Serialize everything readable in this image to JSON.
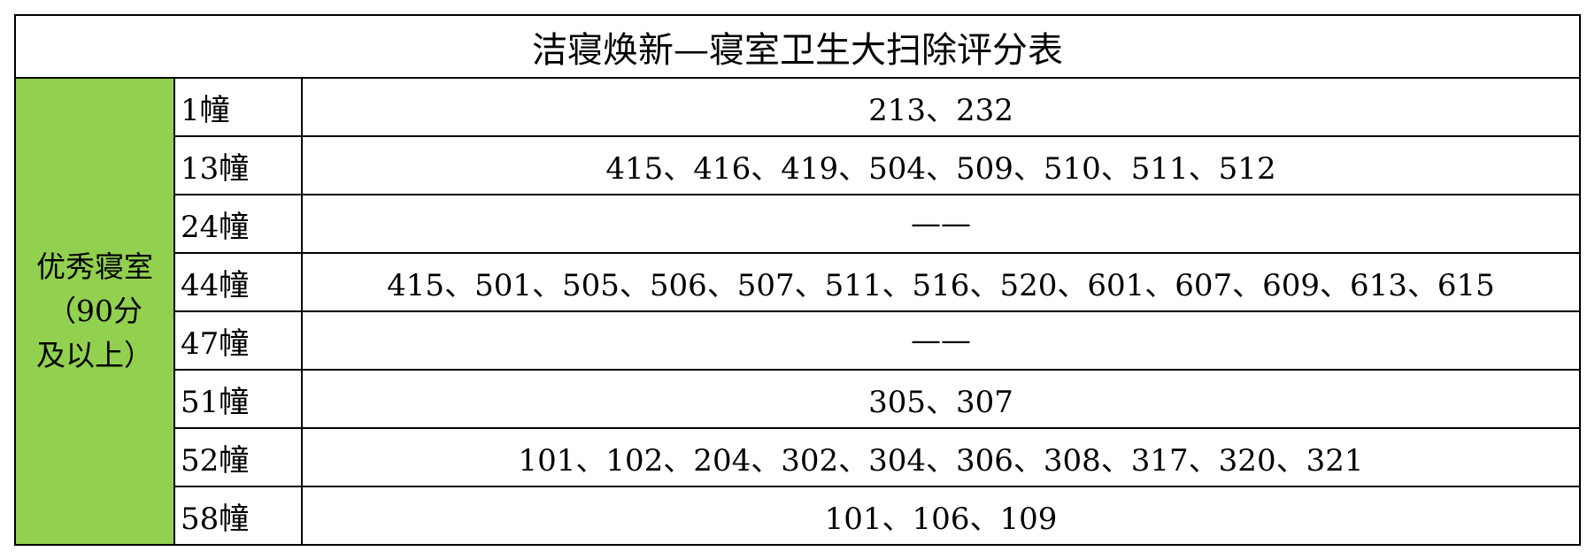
{
  "title": "洁寝焕新—寝室卫生大扫除评分表",
  "category": {
    "line1": "优秀寝室",
    "line2": "（90分",
    "line3": "及以上）",
    "color": "#92D050"
  },
  "rows": [
    {
      "building": "1幢",
      "rooms": "213、232"
    },
    {
      "building": "13幢",
      "rooms": "415、416、419、504、509、510、511、512"
    },
    {
      "building": "24幢",
      "rooms": "——"
    },
    {
      "building": "44幢",
      "rooms": "415、501、505、506、507、511、516、520、601、607、609、613、615"
    },
    {
      "building": "47幢",
      "rooms": "——"
    },
    {
      "building": "51幢",
      "rooms": "305、307"
    },
    {
      "building": "52幢",
      "rooms": "101、102、204、302、304、306、308、317、320、321"
    },
    {
      "building": "58幢",
      "rooms": "101、106、109"
    }
  ]
}
